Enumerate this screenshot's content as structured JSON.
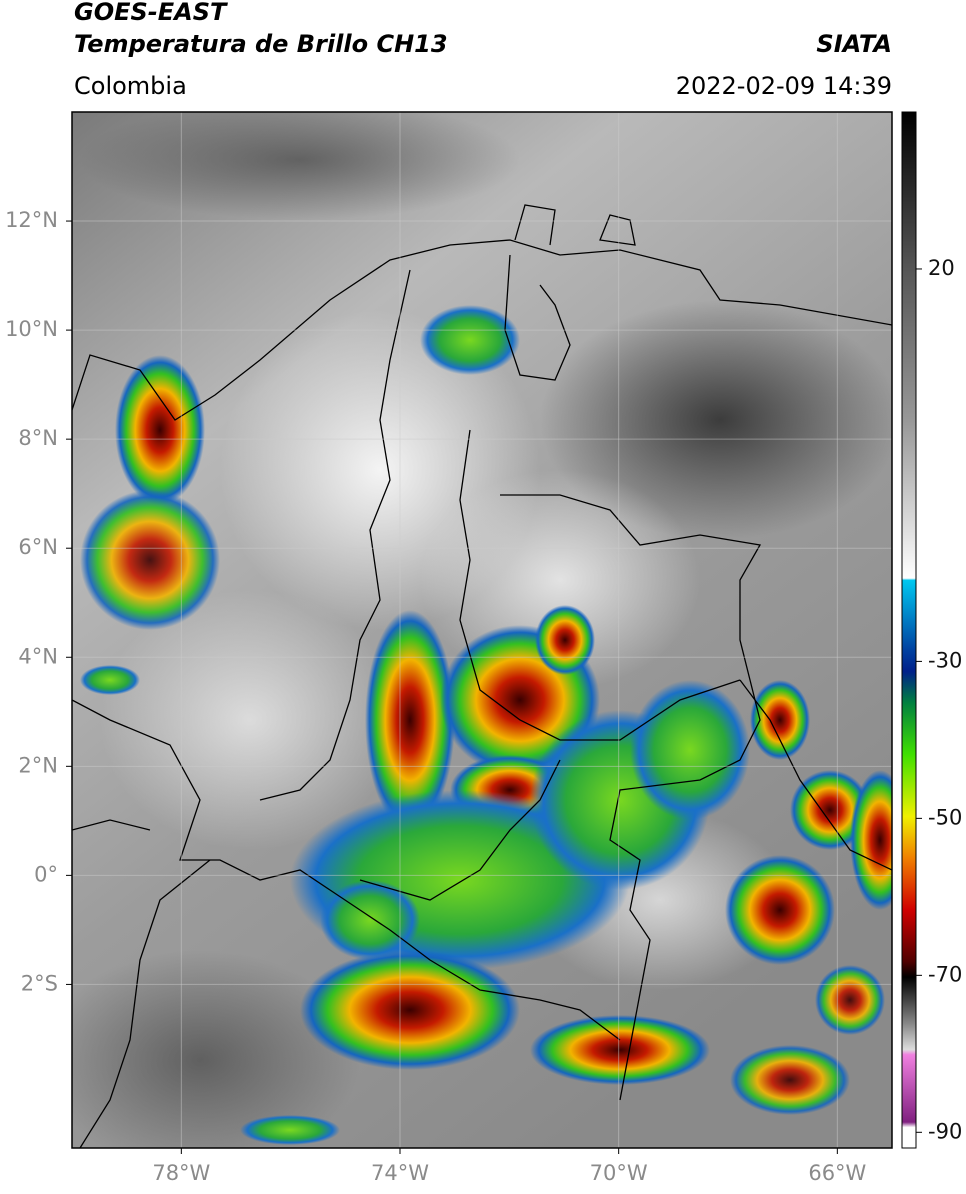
{
  "header": {
    "satellite": "GOES-EAST",
    "product": "Temperatura de Brillo CH13",
    "source": "SIATA",
    "region": "Colombia",
    "datetime": "2022-02-09 14:39"
  },
  "map": {
    "xlim": [
      -80,
      -65
    ],
    "ylim": [
      -5,
      14
    ],
    "xticks": [
      {
        "value": -78,
        "label": "78°W"
      },
      {
        "value": -74,
        "label": "74°W"
      },
      {
        "value": -70,
        "label": "70°W"
      },
      {
        "value": -66,
        "label": "66°W"
      }
    ],
    "yticks": [
      {
        "value": 12,
        "label": "12°N"
      },
      {
        "value": 10,
        "label": "10°N"
      },
      {
        "value": 8,
        "label": "8°N"
      },
      {
        "value": 6,
        "label": "6°N"
      },
      {
        "value": 4,
        "label": "4°N"
      },
      {
        "value": 2,
        "label": "2°N"
      },
      {
        "value": 0,
        "label": "0°"
      },
      {
        "value": -2,
        "label": "2°S"
      }
    ],
    "grid": true
  },
  "colorbar": {
    "lim": [
      -92,
      40
    ],
    "ticks": [
      20,
      -30,
      -50,
      -70,
      -90
    ]
  }
}
